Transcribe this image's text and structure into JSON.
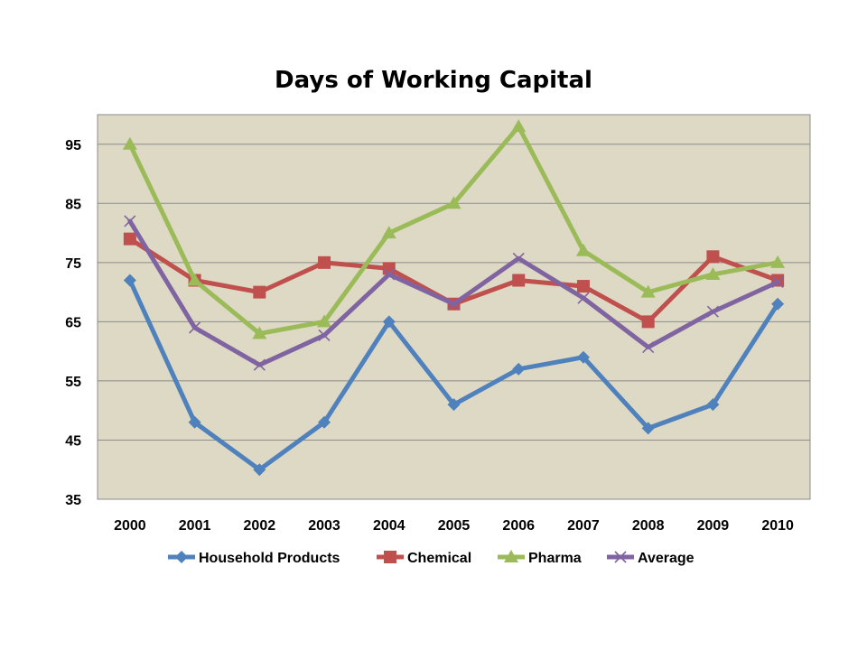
{
  "chart_data": {
    "type": "line",
    "title": "Days of Working Capital",
    "xlabel": "",
    "ylabel": "",
    "categories": [
      "2000",
      "2001",
      "2002",
      "2003",
      "2004",
      "2005",
      "2006",
      "2007",
      "2008",
      "2009",
      "2010"
    ],
    "ylim": [
      35,
      100
    ],
    "yticks": [
      35,
      45,
      55,
      65,
      75,
      85,
      95
    ],
    "grid": true,
    "plot_background": "#DDD9C4",
    "legend_position": "bottom",
    "series": [
      {
        "name": "Household Products",
        "color": "#4F81BD",
        "marker": "diamond",
        "values": [
          72,
          48,
          40,
          48,
          65,
          51,
          57,
          59,
          47,
          51,
          68
        ]
      },
      {
        "name": "Chemical",
        "color": "#C0504D",
        "marker": "square",
        "values": [
          79,
          72,
          70,
          75,
          74,
          68,
          72,
          71,
          65,
          76,
          72
        ]
      },
      {
        "name": "Pharma",
        "color": "#9BBB59",
        "marker": "triangle",
        "values": [
          95,
          72,
          63,
          65,
          80,
          85,
          98,
          77,
          70,
          73,
          75
        ]
      },
      {
        "name": "Average",
        "color": "#8064A2",
        "marker": "x",
        "values": [
          82,
          64,
          57.7,
          62.7,
          73,
          68,
          75.7,
          69,
          60.7,
          66.7,
          71.7
        ]
      }
    ]
  }
}
